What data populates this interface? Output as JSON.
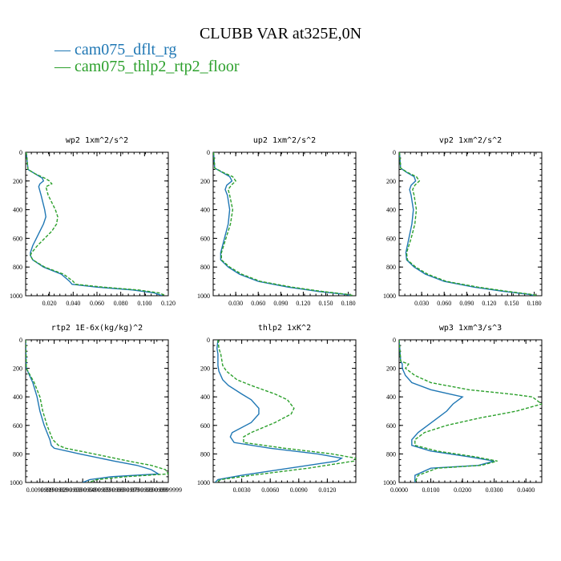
{
  "figure": {
    "title": "CLUBB VAR at325E,0N",
    "legend": [
      {
        "label": "cam075_dflt_rg",
        "color": "#1f77b4",
        "dash": ""
      },
      {
        "label": "cam075_thlp2_rtp2_floor",
        "color": "#2ca02c",
        "dash": "4,2"
      }
    ]
  },
  "chart_data": [
    {
      "type": "line",
      "title": "wp2   1xm^2/s^2",
      "xlabel": "",
      "ylabel": "",
      "xlim": [
        0,
        0.12
      ],
      "ylim": [
        1000,
        0
      ],
      "xticks": [
        "0.020",
        "0.040",
        "0.060",
        "0.080",
        "0.100",
        "0.120"
      ],
      "yticks": [
        "0",
        "200",
        "400",
        "600",
        "800",
        "1000"
      ],
      "series": [
        {
          "name": "cam075_dflt_rg",
          "y": [
            0,
            120,
            150,
            180,
            200,
            220,
            240,
            300,
            400,
            450,
            500,
            550,
            600,
            650,
            700,
            720,
            750,
            800,
            850,
            900,
            920,
            940,
            960,
            980,
            1000
          ],
          "x": [
            0.0005,
            0.002,
            0.008,
            0.014,
            0.015,
            0.012,
            0.011,
            0.013,
            0.016,
            0.017,
            0.015,
            0.012,
            0.009,
            0.006,
            0.004,
            0.004,
            0.006,
            0.015,
            0.03,
            0.037,
            0.039,
            0.06,
            0.09,
            0.108,
            0.115
          ]
        },
        {
          "name": "cam075_thlp2_rtp2_floor",
          "y": [
            0,
            120,
            150,
            180,
            200,
            220,
            240,
            300,
            400,
            450,
            500,
            550,
            600,
            650,
            700,
            720,
            750,
            800,
            850,
            900,
            920,
            940,
            960,
            980,
            1000
          ],
          "x": [
            0.0005,
            0.002,
            0.008,
            0.016,
            0.02,
            0.022,
            0.017,
            0.019,
            0.025,
            0.027,
            0.026,
            0.022,
            0.016,
            0.01,
            0.005,
            0.004,
            0.006,
            0.016,
            0.032,
            0.04,
            0.042,
            0.065,
            0.095,
            0.112,
            0.118
          ]
        }
      ]
    },
    {
      "type": "line",
      "title": "up2   1xm^2/s^2",
      "xlabel": "",
      "ylabel": "",
      "xlim": [
        0,
        0.19
      ],
      "ylim": [
        1000,
        0
      ],
      "xticks": [
        "0.030",
        "0.060",
        "0.090",
        "0.120",
        "0.150",
        "0.180"
      ],
      "yticks": [
        "0",
        "200",
        "400",
        "600",
        "800",
        "1000"
      ],
      "series": [
        {
          "name": "cam075_dflt_rg",
          "y": [
            0,
            110,
            140,
            170,
            200,
            230,
            260,
            300,
            400,
            500,
            600,
            700,
            750,
            800,
            850,
            900,
            940,
            970,
            990,
            1000
          ],
          "x": [
            0.0005,
            0.002,
            0.012,
            0.022,
            0.025,
            0.018,
            0.016,
            0.019,
            0.022,
            0.02,
            0.015,
            0.01,
            0.01,
            0.02,
            0.035,
            0.06,
            0.1,
            0.14,
            0.175,
            0.185
          ]
        },
        {
          "name": "cam075_thlp2_rtp2_floor",
          "y": [
            0,
            110,
            140,
            170,
            200,
            230,
            260,
            300,
            400,
            500,
            600,
            700,
            750,
            800,
            850,
            900,
            940,
            970,
            990,
            1000
          ],
          "x": [
            0.0005,
            0.002,
            0.013,
            0.026,
            0.03,
            0.024,
            0.02,
            0.022,
            0.026,
            0.023,
            0.017,
            0.011,
            0.011,
            0.022,
            0.038,
            0.063,
            0.105,
            0.145,
            0.178,
            0.188
          ]
        }
      ]
    },
    {
      "type": "line",
      "title": "vp2   1xm^2/s^2",
      "xlabel": "",
      "ylabel": "",
      "xlim": [
        0,
        0.19
      ],
      "ylim": [
        1000,
        0
      ],
      "xticks": [
        "0.030",
        "0.060",
        "0.090",
        "0.120",
        "0.150",
        "0.180"
      ],
      "yticks": [
        "0",
        "200",
        "400",
        "600",
        "800",
        "1000"
      ],
      "series": [
        {
          "name": "cam075_dflt_rg",
          "y": [
            0,
            110,
            140,
            170,
            200,
            230,
            260,
            300,
            400,
            500,
            600,
            700,
            750,
            800,
            850,
            900,
            940,
            970,
            990,
            1000
          ],
          "x": [
            0.0005,
            0.002,
            0.01,
            0.02,
            0.022,
            0.016,
            0.014,
            0.016,
            0.019,
            0.017,
            0.013,
            0.009,
            0.01,
            0.02,
            0.035,
            0.06,
            0.1,
            0.14,
            0.172,
            0.182
          ]
        },
        {
          "name": "cam075_thlp2_rtp2_floor",
          "y": [
            0,
            110,
            140,
            170,
            200,
            230,
            260,
            300,
            400,
            500,
            600,
            700,
            750,
            800,
            850,
            900,
            940,
            970,
            990,
            1000
          ],
          "x": [
            0.0005,
            0.002,
            0.011,
            0.023,
            0.027,
            0.021,
            0.018,
            0.02,
            0.023,
            0.021,
            0.016,
            0.01,
            0.011,
            0.022,
            0.038,
            0.063,
            0.105,
            0.145,
            0.175,
            0.185
          ]
        }
      ]
    },
    {
      "type": "line",
      "title": "rtp2   1E-6x(kg/kg)^2",
      "xlabel": "",
      "ylabel": "",
      "xlim": [
        0,
        1
      ],
      "ylim": [
        1000,
        0
      ],
      "xticks": [
        "0.0099999",
        "0.0199999",
        "0.0299999",
        "0.0399999",
        "0.0499999",
        "0.0599999",
        "0.0699999",
        "0.0799999",
        "0.0899999",
        "0.0999999"
      ],
      "yticks": [
        "0",
        "200",
        "400",
        "600",
        "800",
        "1000"
      ],
      "series": [
        {
          "name": "cam075_dflt_rg",
          "y": [
            0,
            200,
            300,
            400,
            500,
            600,
            650,
            700,
            740,
            760,
            800,
            850,
            880,
            910,
            940,
            960,
            980,
            1000
          ],
          "x": [
            0,
            0.005,
            0.05,
            0.08,
            0.1,
            0.13,
            0.15,
            0.17,
            0.18,
            0.2,
            0.38,
            0.62,
            0.78,
            0.88,
            0.93,
            0.6,
            0.45,
            0.4
          ]
        },
        {
          "name": "cam075_thlp2_rtp2_floor",
          "y": [
            0,
            200,
            300,
            400,
            500,
            600,
            650,
            700,
            740,
            760,
            800,
            850,
            880,
            910,
            940,
            960,
            980,
            1000
          ],
          "x": [
            0,
            0.005,
            0.06,
            0.1,
            0.12,
            0.15,
            0.17,
            0.19,
            0.23,
            0.28,
            0.48,
            0.72,
            0.88,
            0.98,
            1.0,
            0.7,
            0.5,
            0.44
          ]
        }
      ]
    },
    {
      "type": "line",
      "title": "thlp2   1xK^2",
      "xlabel": "",
      "ylabel": "",
      "xlim": [
        0,
        0.015
      ],
      "ylim": [
        1000,
        0
      ],
      "xticks": [
        "0.0030",
        "0.0060",
        "0.0090",
        "0.0120"
      ],
      "yticks": [
        "0",
        "200",
        "400",
        "600",
        "800",
        "1000"
      ],
      "series": [
        {
          "name": "cam075_dflt_rg",
          "y": [
            0,
            60,
            100,
            180,
            220,
            280,
            320,
            380,
            420,
            480,
            520,
            580,
            650,
            680,
            720,
            760,
            800,
            830,
            850,
            900,
            950,
            980,
            1000
          ],
          "x": [
            0.0005,
            0.0004,
            0.0005,
            0.0005,
            0.0006,
            0.001,
            0.0016,
            0.003,
            0.004,
            0.0048,
            0.0048,
            0.004,
            0.002,
            0.0018,
            0.0022,
            0.006,
            0.011,
            0.0135,
            0.013,
            0.008,
            0.003,
            0.0005,
            0.0002
          ]
        },
        {
          "name": "cam075_thlp2_rtp2_floor",
          "y": [
            0,
            60,
            100,
            180,
            220,
            280,
            320,
            380,
            420,
            480,
            520,
            580,
            650,
            680,
            720,
            760,
            800,
            830,
            850,
            900,
            950,
            980,
            1000
          ],
          "x": [
            0.0005,
            0.0006,
            0.0008,
            0.001,
            0.0014,
            0.0025,
            0.004,
            0.0065,
            0.0078,
            0.0085,
            0.0082,
            0.0065,
            0.004,
            0.0032,
            0.0032,
            0.0075,
            0.0125,
            0.015,
            0.0148,
            0.01,
            0.004,
            0.0008,
            0.0003
          ]
        }
      ]
    },
    {
      "type": "line",
      "title": "wp3   1xm^3/s^3",
      "xlabel": "",
      "ylabel": "",
      "xlim": [
        0,
        0.045
      ],
      "ylim": [
        1000,
        0
      ],
      "xticks": [
        "0.0000",
        "0.0100",
        "0.0200",
        "0.0300",
        "0.0400"
      ],
      "yticks": [
        "0",
        "200",
        "400",
        "600",
        "800",
        "1000"
      ],
      "series": [
        {
          "name": "cam075_dflt_rg",
          "y": [
            0,
            150,
            170,
            200,
            250,
            300,
            350,
            380,
            400,
            450,
            500,
            550,
            600,
            650,
            700,
            740,
            780,
            820,
            850,
            880,
            900,
            950,
            1000
          ],
          "x": [
            0,
            0.0005,
            0.001,
            0.001,
            0.002,
            0.004,
            0.01,
            0.016,
            0.02,
            0.017,
            0.015,
            0.012,
            0.009,
            0.006,
            0.004,
            0.004,
            0.01,
            0.022,
            0.03,
            0.025,
            0.01,
            0.005,
            0.005
          ]
        },
        {
          "name": "cam075_thlp2_rtp2_floor",
          "y": [
            0,
            150,
            170,
            200,
            250,
            300,
            350,
            380,
            400,
            450,
            500,
            550,
            600,
            650,
            700,
            740,
            780,
            820,
            850,
            880,
            900,
            950,
            1000
          ],
          "x": [
            0,
            0.0005,
            0.003,
            0.002,
            0.005,
            0.01,
            0.022,
            0.035,
            0.042,
            0.045,
            0.037,
            0.025,
            0.015,
            0.008,
            0.005,
            0.005,
            0.012,
            0.024,
            0.031,
            0.026,
            0.012,
            0.006,
            0.005
          ]
        }
      ]
    }
  ]
}
